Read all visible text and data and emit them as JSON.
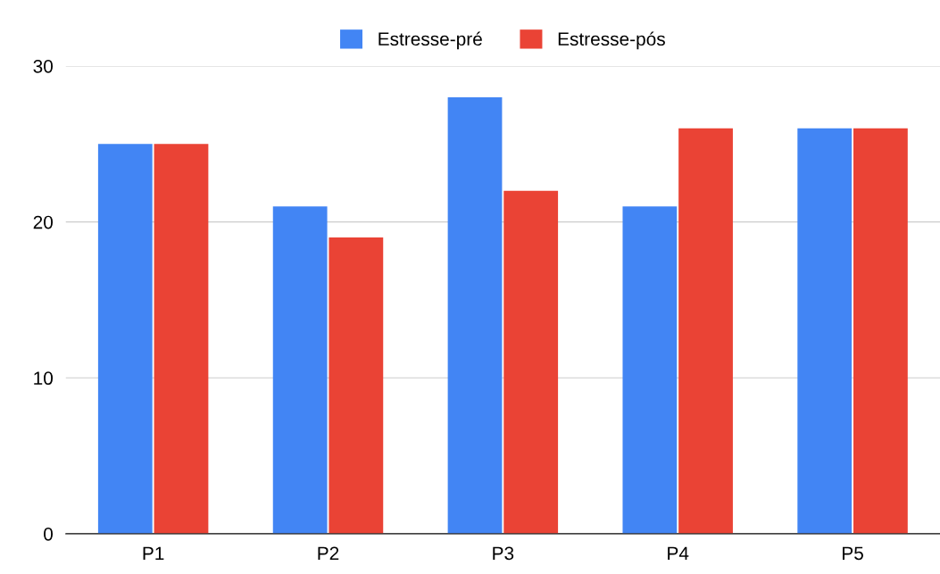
{
  "chart_data": {
    "type": "bar",
    "categories": [
      "P1",
      "P2",
      "P3",
      "P4",
      "P5"
    ],
    "series": [
      {
        "name": "Estresse-pré",
        "color": "#4285f4",
        "values": [
          25,
          21,
          28,
          21,
          26
        ]
      },
      {
        "name": "Estresse-pós",
        "color": "#ea4335",
        "values": [
          25,
          19,
          22,
          26,
          26
        ]
      }
    ],
    "ylim": [
      0,
      30
    ],
    "yticks": [
      0,
      10,
      20,
      30
    ],
    "grid": "y",
    "legend": "top"
  }
}
